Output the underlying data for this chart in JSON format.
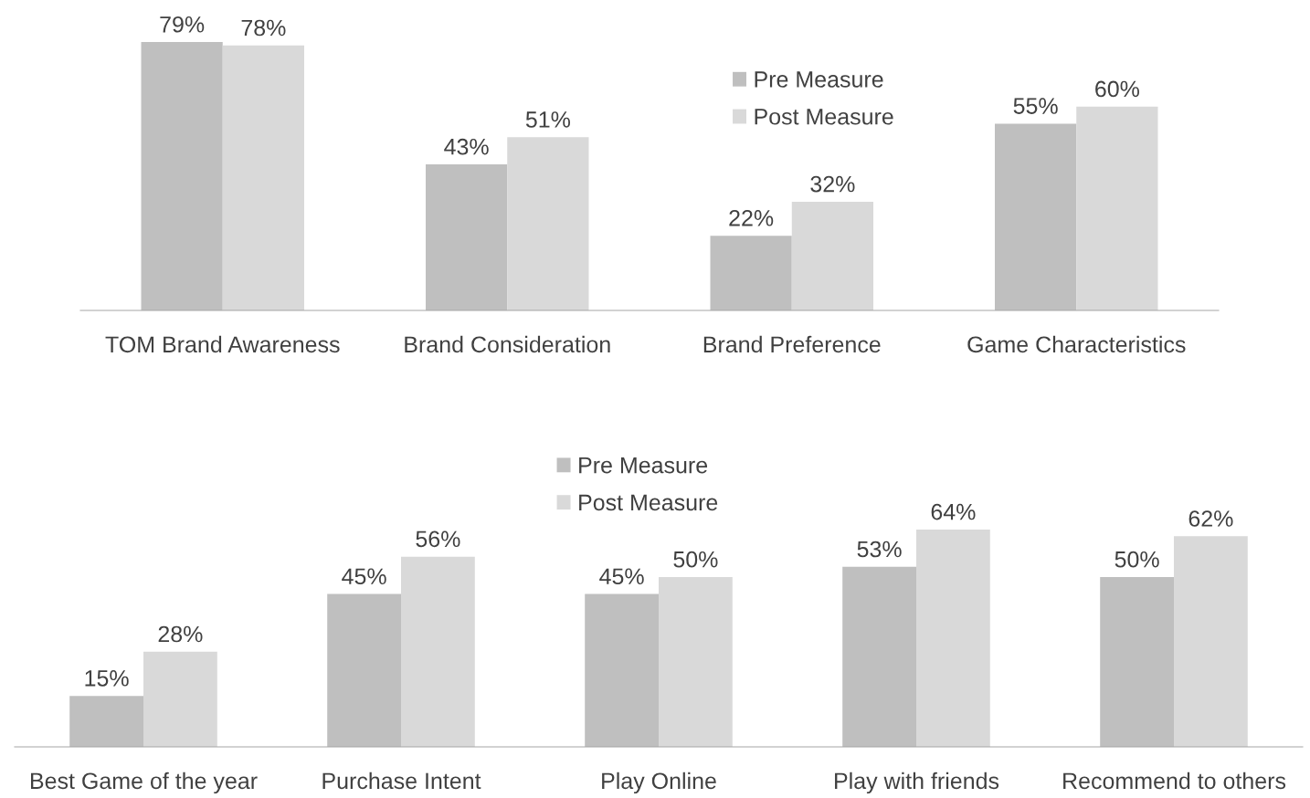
{
  "chart_data": [
    {
      "type": "bar",
      "categories": [
        "TOM Brand Awareness",
        "Brand Consideration",
        "Brand Preference",
        "Game Characteristics"
      ],
      "legend": "top",
      "tick_labels": "x",
      "series": [
        {
          "name": "Pre Measure",
          "color": "#bfbfbf",
          "values": [
            79,
            43,
            22,
            55
          ],
          "value_labels": [
            "79%",
            "43%",
            "22%",
            "55%"
          ]
        },
        {
          "name": "Post Measure",
          "color": "#d9d9d9",
          "values": [
            78,
            51,
            32,
            60
          ],
          "value_labels": [
            "78%",
            "51%",
            "32%",
            "60%"
          ]
        }
      ]
    },
    {
      "type": "bar",
      "categories": [
        "Best Game of the year",
        "Purchase Intent",
        "Play Online",
        "Play with friends",
        "Recommend to others"
      ],
      "legend": "top",
      "tick_labels": "x",
      "series": [
        {
          "name": "Pre Measure",
          "color": "#bfbfbf",
          "values": [
            15,
            45,
            45,
            53,
            50
          ],
          "value_labels": [
            "15%",
            "45%",
            "45%",
            "53%",
            "50%"
          ]
        },
        {
          "name": "Post Measure",
          "color": "#d9d9d9",
          "values": [
            28,
            56,
            50,
            64,
            62
          ],
          "value_labels": [
            "28%",
            "56%",
            "50%",
            "64%",
            "62%"
          ]
        }
      ]
    }
  ]
}
